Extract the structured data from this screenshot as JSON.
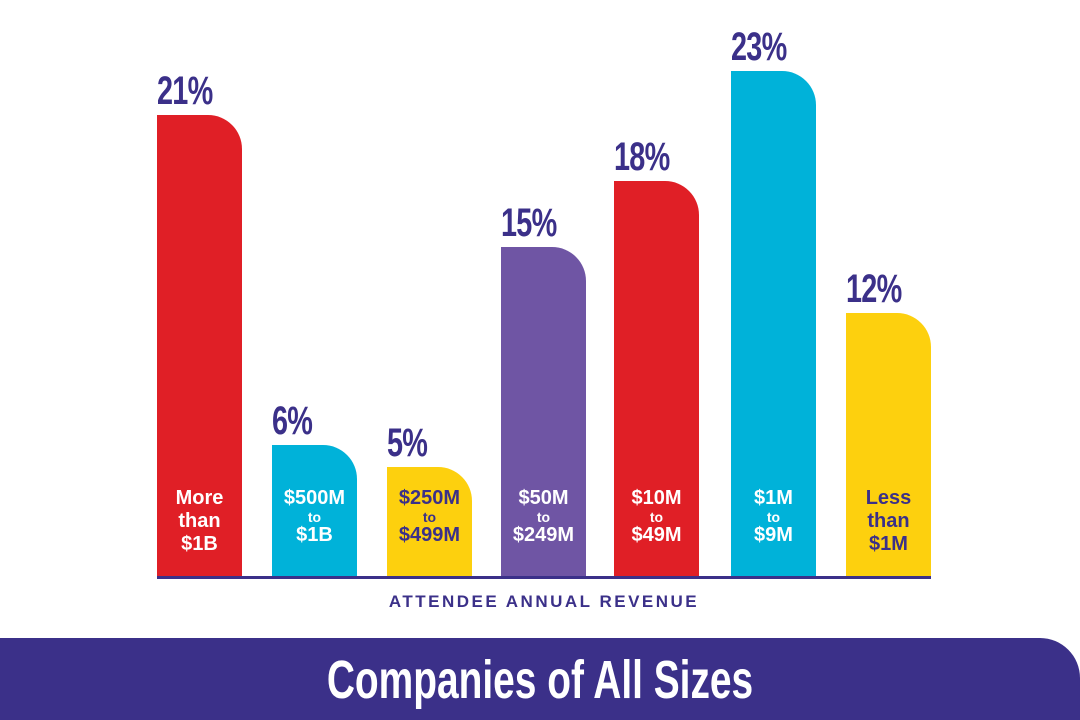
{
  "chart_data": {
    "type": "bar",
    "title": "Companies of All Sizes",
    "xlabel": "ATTENDEE ANNUAL REVENUE",
    "ylabel": "",
    "categories": [
      [
        "More",
        "than",
        "$1B"
      ],
      [
        "$500M",
        "to",
        "$1B"
      ],
      [
        "$250M",
        "to",
        "$499M"
      ],
      [
        "$50M",
        "to",
        "$249M"
      ],
      [
        "$10M",
        "to",
        "$49M"
      ],
      [
        "$1M",
        "to",
        "$9M"
      ],
      [
        "Less",
        "than",
        "$1M"
      ]
    ],
    "values": [
      21,
      6,
      5,
      15,
      18,
      23,
      12
    ],
    "value_labels": [
      "21%",
      "6%",
      "5%",
      "15%",
      "18%",
      "23%",
      "12%"
    ],
    "colors": [
      "#e01f26",
      "#00b2d9",
      "#fdd00e",
      "#6f55a4",
      "#e01f26",
      "#00b2d9",
      "#fdd00e"
    ],
    "label_colors": [
      "#ffffff",
      "#ffffff",
      "#3b3089",
      "#ffffff",
      "#ffffff",
      "#ffffff",
      "#3b3089"
    ],
    "ylim": [
      0,
      23.5
    ],
    "grid": false
  }
}
